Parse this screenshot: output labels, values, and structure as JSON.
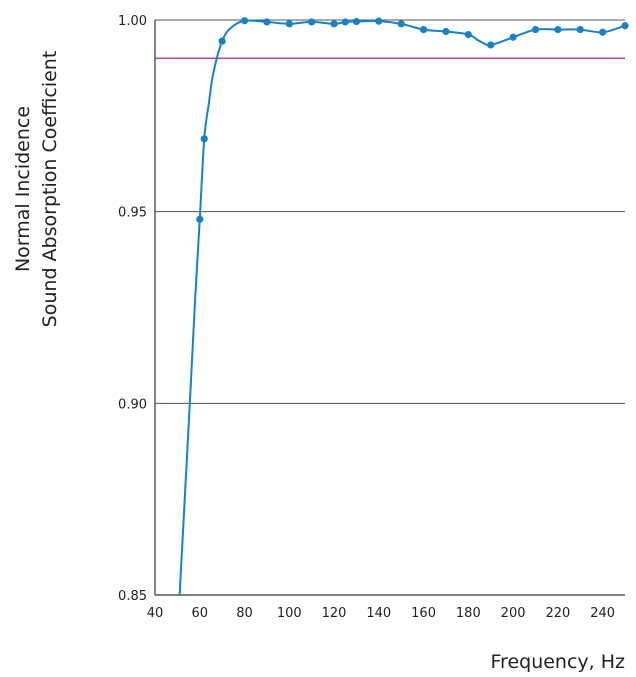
{
  "chart_data": {
    "type": "line",
    "title": "",
    "xlabel": "Frequency, Hz",
    "ylabel_lines": [
      "Normal Incidence",
      "Sound Absorption Coefficient"
    ],
    "xlim": [
      40,
      250
    ],
    "ylim": [
      0.85,
      1.0
    ],
    "x_ticks": [
      40,
      60,
      80,
      100,
      120,
      140,
      160,
      180,
      200,
      220,
      240
    ],
    "y_ticks": [
      0.85,
      0.9,
      0.95,
      1.0
    ],
    "y_tick_labels": [
      "0.85",
      "0.90",
      "0.95",
      "1.00"
    ],
    "grid": "horizontal",
    "reference_line": {
      "y": 0.99,
      "color": "#b0529a"
    },
    "series": [
      {
        "color": "#1a82c4",
        "curve": [
          [
            51,
            0.85
          ],
          [
            53,
            0.872
          ],
          [
            56,
            0.905
          ],
          [
            58,
            0.928
          ],
          [
            60,
            0.948
          ],
          [
            62,
            0.969
          ],
          [
            64,
            0.978
          ],
          [
            66,
            0.986
          ],
          [
            70,
            0.9945
          ],
          [
            74,
            0.998
          ],
          [
            80,
            0.9998
          ],
          [
            90,
            0.9995
          ],
          [
            100,
            0.999
          ],
          [
            110,
            0.9995
          ],
          [
            120,
            0.999
          ],
          [
            125,
            0.9995
          ],
          [
            130,
            0.9996
          ],
          [
            140,
            0.9997
          ],
          [
            150,
            0.999
          ],
          [
            160,
            0.9975
          ],
          [
            170,
            0.997
          ],
          [
            180,
            0.9962
          ],
          [
            185,
            0.9945
          ],
          [
            190,
            0.9935
          ],
          [
            200,
            0.9955
          ],
          [
            210,
            0.9975
          ],
          [
            220,
            0.9975
          ],
          [
            230,
            0.9975
          ],
          [
            240,
            0.9968
          ],
          [
            250,
            0.9985
          ]
        ],
        "markers": [
          [
            60,
            0.948
          ],
          [
            62,
            0.969
          ],
          [
            70,
            0.9945
          ],
          [
            80,
            0.9998
          ],
          [
            90,
            0.9995
          ],
          [
            100,
            0.999
          ],
          [
            110,
            0.9995
          ],
          [
            120,
            0.999
          ],
          [
            125,
            0.9995
          ],
          [
            130,
            0.9996
          ],
          [
            140,
            0.9997
          ],
          [
            150,
            0.999
          ],
          [
            160,
            0.9975
          ],
          [
            170,
            0.997
          ],
          [
            180,
            0.9962
          ],
          [
            190,
            0.9935
          ],
          [
            200,
            0.9955
          ],
          [
            210,
            0.9975
          ],
          [
            220,
            0.9975
          ],
          [
            230,
            0.9975
          ],
          [
            240,
            0.9968
          ],
          [
            250,
            0.9985
          ]
        ]
      }
    ]
  }
}
